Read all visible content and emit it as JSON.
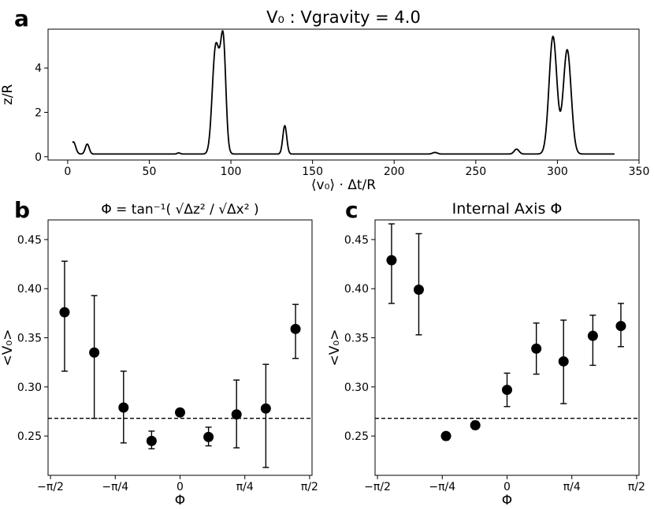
{
  "figure_title": "V₀ : Vgravity = 4.0",
  "chart_data": [
    {
      "id": "a",
      "panel_letter": "a",
      "type": "line",
      "title": "V₀ : Vgravity = 4.0",
      "xlabel": "⟨v₀⟩ · Δt/R",
      "ylabel": "z/R",
      "xlim": [
        -12,
        350
      ],
      "ylim": [
        -0.15,
        5.75
      ],
      "xticks": [
        0,
        50,
        100,
        150,
        200,
        250,
        300,
        350
      ],
      "xtick_labels": [
        "0",
        "50",
        "100",
        "150",
        "200",
        "250",
        "300",
        "350"
      ],
      "yticks": [
        0,
        2,
        4
      ],
      "ytick_labels": [
        "0",
        "2",
        "4"
      ],
      "baseline": 0.12,
      "x_range": [
        3,
        335
      ],
      "peaks": [
        {
          "x": 3.5,
          "height": 0.55,
          "width": 1.4
        },
        {
          "x": 12,
          "height": 0.45,
          "width": 1.2
        },
        {
          "x": 68,
          "height": 0.05,
          "width": 1.0
        },
        {
          "x": 90,
          "height": 2.6,
          "width": 1.8
        },
        {
          "x": 92.5,
          "height": 3.3,
          "width": 2.5
        },
        {
          "x": 95.5,
          "height": 3.7,
          "width": 1.5
        },
        {
          "x": 133,
          "height": 1.28,
          "width": 1.2
        },
        {
          "x": 225,
          "height": 0.07,
          "width": 1.5
        },
        {
          "x": 275,
          "height": 0.22,
          "width": 1.5
        },
        {
          "x": 297.3,
          "height": 5.3,
          "width": 2.4
        },
        {
          "x": 306,
          "height": 4.7,
          "width": 2.4
        }
      ]
    },
    {
      "id": "b",
      "panel_letter": "b",
      "type": "scatter",
      "title": "Φ = tan⁻¹( √Δz² / √Δx² )",
      "xlabel": "Φ",
      "ylabel": "<V₀>",
      "xlim": [
        -1.6,
        1.6
      ],
      "ylim": [
        0.21,
        0.47
      ],
      "xticks": [
        -1.5708,
        -0.7854,
        0,
        0.7854,
        1.5708
      ],
      "xtick_labels": [
        "−π/2",
        "−π/4",
        "0",
        "π/4",
        "π/2"
      ],
      "yticks": [
        0.25,
        0.3,
        0.35,
        0.4,
        0.45
      ],
      "ytick_labels": [
        "0.25",
        "0.30",
        "0.35",
        "0.40",
        "0.45"
      ],
      "reference_line": 0.268,
      "points": [
        {
          "x": -1.4,
          "y": 0.376,
          "err_low": 0.316,
          "err_high": 0.428
        },
        {
          "x": -1.04,
          "y": 0.335,
          "err_low": 0.268,
          "err_high": 0.393
        },
        {
          "x": -0.685,
          "y": 0.279,
          "err_low": 0.243,
          "err_high": 0.316
        },
        {
          "x": -0.345,
          "y": 0.245,
          "err_low": 0.237,
          "err_high": 0.255
        },
        {
          "x": 0.0,
          "y": 0.274,
          "err_low": 0.274,
          "err_high": 0.274
        },
        {
          "x": 0.345,
          "y": 0.249,
          "err_low": 0.24,
          "err_high": 0.259
        },
        {
          "x": 0.685,
          "y": 0.272,
          "err_low": 0.238,
          "err_high": 0.307
        },
        {
          "x": 1.04,
          "y": 0.278,
          "err_low": 0.218,
          "err_high": 0.323
        },
        {
          "x": 1.4,
          "y": 0.359,
          "err_low": 0.329,
          "err_high": 0.384
        }
      ]
    },
    {
      "id": "c",
      "panel_letter": "c",
      "type": "scatter",
      "title": "Internal Axis Φ",
      "xlabel": "Φ",
      "ylabel": "<V₀>",
      "xlim": [
        -1.6,
        1.6
      ],
      "ylim": [
        0.21,
        0.47
      ],
      "xticks": [
        -1.5708,
        -0.7854,
        0,
        0.7854,
        1.5708
      ],
      "xtick_labels": [
        "−π/2",
        "−π/4",
        "0",
        "π/4",
        "π/2"
      ],
      "yticks": [
        0.25,
        0.3,
        0.35,
        0.4,
        0.45
      ],
      "ytick_labels": [
        "0.25",
        "0.30",
        "0.35",
        "0.40",
        "0.45"
      ],
      "reference_line": 0.268,
      "points": [
        {
          "x": -1.4,
          "y": 0.429,
          "err_low": 0.385,
          "err_high": 0.466
        },
        {
          "x": -1.07,
          "y": 0.399,
          "err_low": 0.353,
          "err_high": 0.456
        },
        {
          "x": -0.74,
          "y": 0.25,
          "err_low": 0.246,
          "err_high": 0.253
        },
        {
          "x": -0.385,
          "y": 0.261,
          "err_low": 0.257,
          "err_high": 0.265
        },
        {
          "x": 0.0,
          "y": 0.297,
          "err_low": 0.28,
          "err_high": 0.314
        },
        {
          "x": 0.355,
          "y": 0.339,
          "err_low": 0.313,
          "err_high": 0.365
        },
        {
          "x": 0.685,
          "y": 0.326,
          "err_low": 0.283,
          "err_high": 0.368
        },
        {
          "x": 1.04,
          "y": 0.352,
          "err_low": 0.322,
          "err_high": 0.373
        },
        {
          "x": 1.38,
          "y": 0.362,
          "err_low": 0.341,
          "err_high": 0.385
        }
      ]
    }
  ]
}
